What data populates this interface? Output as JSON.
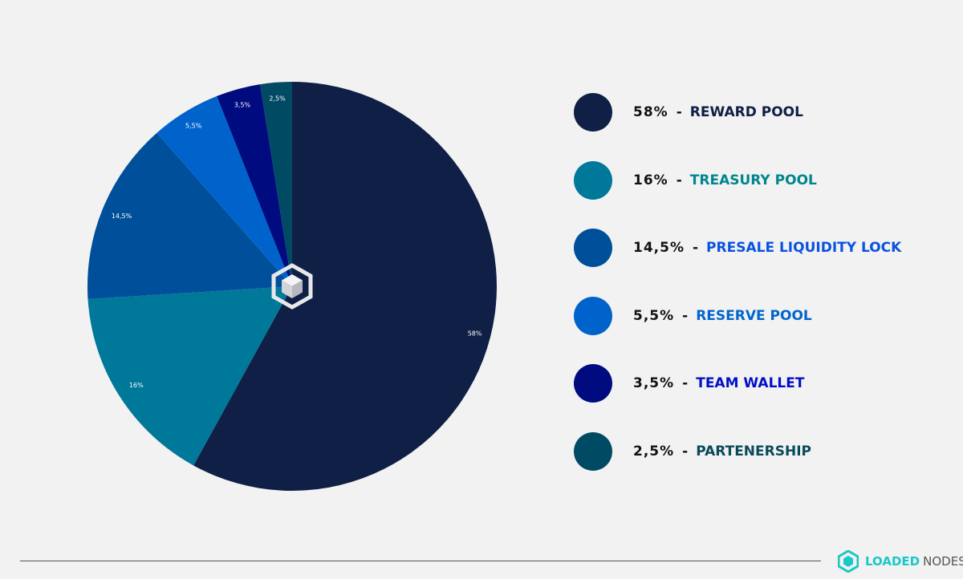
{
  "chart_data": {
    "type": "pie",
    "start": "top",
    "direction": "clockwise",
    "slices": [
      {
        "name": "REWARD POOL",
        "value": 58,
        "label": "58%",
        "color": "#0f1f45",
        "text_color": "#0f1f45"
      },
      {
        "name": "TREASURY POOL",
        "value": 16,
        "label": "16%",
        "color": "#00789a",
        "text_color": "#00868f"
      },
      {
        "name": "PRESALE LIQUIDITY LOCK",
        "value": 14.5,
        "label": "14,5%",
        "color": "#004f9a",
        "text_color": "#0a52e0"
      },
      {
        "name": "RESERVE POOL",
        "value": 5.5,
        "label": "5,5%",
        "color": "#0063cc",
        "text_color": "#0066cc"
      },
      {
        "name": "TEAM WALLET",
        "value": 3.5,
        "label": "3,5%",
        "color": "#000b80",
        "text_color": "#0010c8"
      },
      {
        "name": "PARTENERSHIP",
        "value": 2.5,
        "label": "2,5%",
        "color": "#004a63",
        "text_color": "#0a4a5a"
      }
    ]
  },
  "legend": {
    "separator": "-"
  },
  "brand": {
    "part1": "LOADED",
    "part2": "NODES"
  }
}
